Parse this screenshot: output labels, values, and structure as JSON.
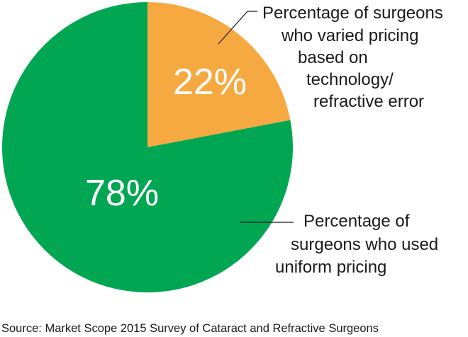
{
  "chart_data": {
    "type": "pie",
    "categories": [
      "Percentage of surgeons who varied pricing based on technology/ refractive error",
      "Percentage of surgeons who used uniform pricing"
    ],
    "values": [
      22,
      78
    ],
    "value_labels": [
      "22%",
      "78%"
    ],
    "colors": [
      "#f7a941",
      "#00a651"
    ],
    "annotations": [
      [
        "Percentage of surgeons",
        "who varied pricing",
        "based on",
        "technology/",
        "refractive error"
      ],
      [
        "Percentage of",
        "surgeons who used",
        "uniform pricing"
      ]
    ],
    "source": "Source: Market Scope 2015 Survey of Cataract and Refractive Surgeons"
  }
}
